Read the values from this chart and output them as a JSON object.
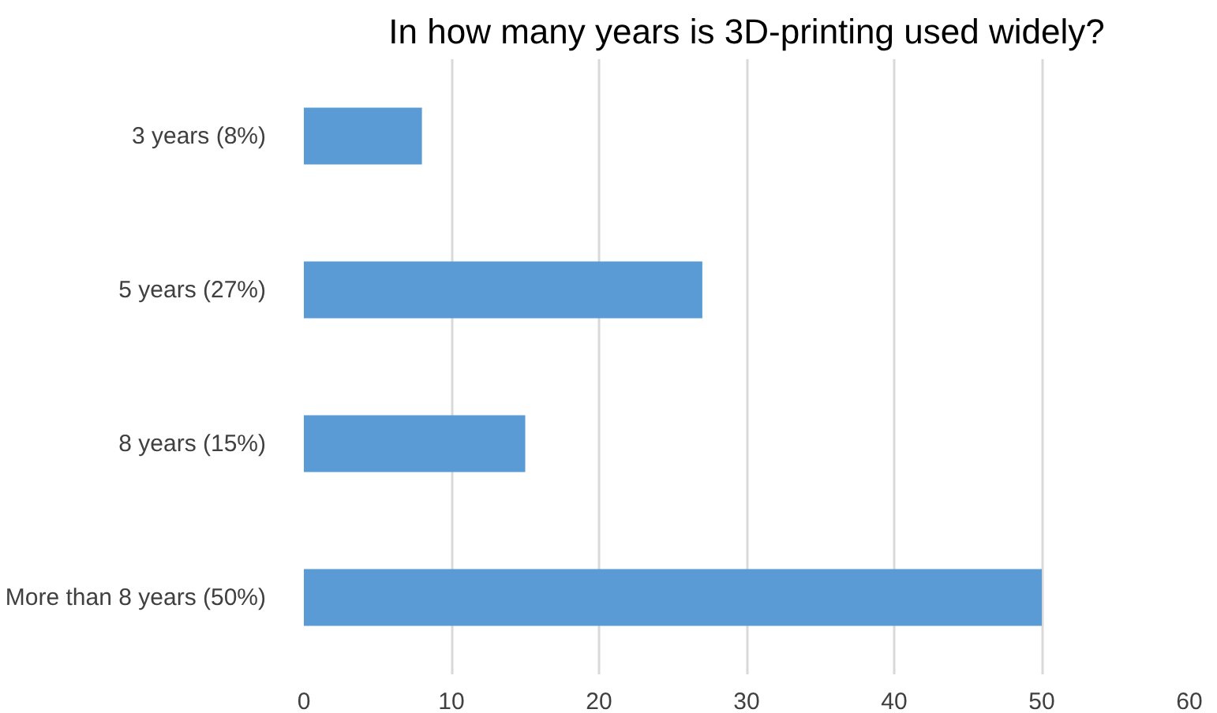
{
  "chart_data": {
    "type": "bar",
    "orientation": "horizontal",
    "title": "In how many years is 3D-printing used widely?",
    "categories": [
      "3 years (8%)",
      "5 years (27%)",
      "8 years (15%)",
      "More than 8 years (50%)"
    ],
    "values": [
      8,
      27,
      15,
      50
    ],
    "color": "#5b9bd5",
    "xlim": [
      0,
      60
    ],
    "xticks": [
      0,
      10,
      20,
      30,
      40,
      50,
      60
    ],
    "grid": "x"
  }
}
